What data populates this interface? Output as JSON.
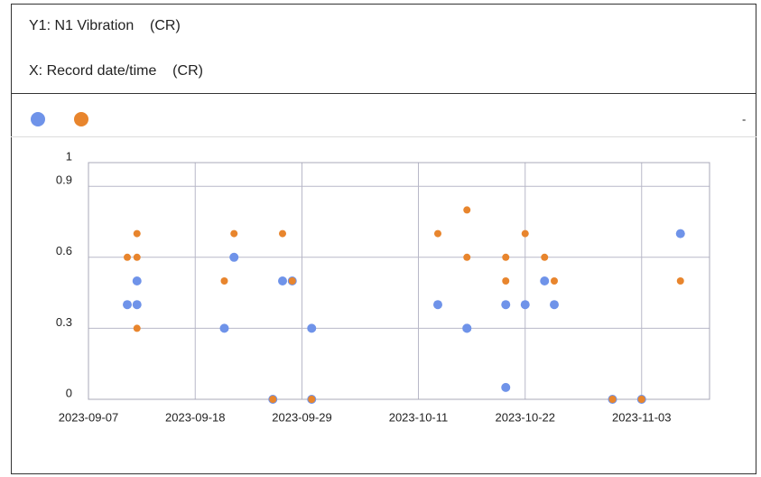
{
  "header": {
    "y_label": "Y1: N1 Vibration    (CR)",
    "x_label": "X: Record date/time    (CR)"
  },
  "legend_more": "-",
  "chart_data": {
    "type": "scatter",
    "series": [
      {
        "color": "#6f93e9",
        "x": [
          "2023-09-11",
          "2023-09-12",
          "2023-09-12",
          "2023-09-21",
          "2023-09-22",
          "2023-09-26",
          "2023-09-27",
          "2023-09-28",
          "2023-09-30",
          "2023-09-30",
          "2023-10-13",
          "2023-10-16",
          "2023-10-16",
          "2023-10-20",
          "2023-10-20",
          "2023-10-22",
          "2023-10-24",
          "2023-10-25",
          "2023-10-31",
          "2023-11-03",
          "2023-11-07"
        ],
        "values": [
          0.4,
          0.5,
          0.4,
          0.3,
          0.6,
          0,
          0.5,
          0.5,
          0.3,
          0,
          0.4,
          0.3,
          0.3,
          0.05,
          0.4,
          0.4,
          0.5,
          0.4,
          0,
          0,
          0.7
        ]
      },
      {
        "color": "#e8852d",
        "x": [
          "2023-09-11",
          "2023-09-12",
          "2023-09-12",
          "2023-09-12",
          "2023-09-21",
          "2023-09-22",
          "2023-09-26",
          "2023-09-27",
          "2023-09-28",
          "2023-09-30",
          "2023-10-13",
          "2023-10-16",
          "2023-10-16",
          "2023-10-20",
          "2023-10-20",
          "2023-10-22",
          "2023-10-24",
          "2023-10-25",
          "2023-10-31",
          "2023-11-03",
          "2023-11-07"
        ],
        "values": [
          0.6,
          0.6,
          0.7,
          0.3,
          0.5,
          0.7,
          0,
          0.7,
          0.5,
          0,
          0.7,
          0.6,
          0.8,
          0.6,
          0.5,
          0.7,
          0.6,
          0.5,
          0,
          0,
          0.5
        ]
      }
    ],
    "xlim": [
      "2023-09-07",
      "2023-11-10"
    ],
    "xticks": [
      "2023-09-07",
      "2023-09-18",
      "2023-09-29",
      "2023-10-11",
      "2023-10-22",
      "2023-11-03"
    ],
    "ylim": [
      0,
      1
    ],
    "yticks": [
      0,
      0.3,
      0.6,
      0.9,
      1
    ],
    "grid": true
  }
}
